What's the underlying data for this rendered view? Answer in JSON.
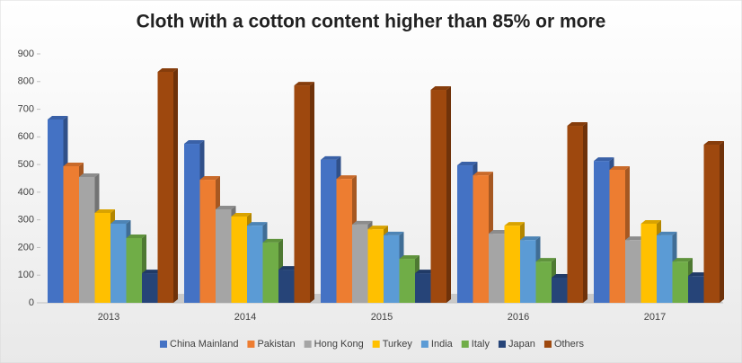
{
  "chart_data": {
    "type": "bar",
    "title": "Cloth with a cotton content higher than 85% or more",
    "categories": [
      "2013",
      "2014",
      "2015",
      "2016",
      "2017"
    ],
    "series": [
      {
        "name": "China Mainland",
        "color": "#4472c4",
        "values": [
          663,
          575,
          517,
          497,
          513
        ]
      },
      {
        "name": "Pakistan",
        "color": "#ed7d31",
        "values": [
          494,
          445,
          448,
          461,
          481
        ]
      },
      {
        "name": "Hong Kong",
        "color": "#a5a5a5",
        "values": [
          455,
          338,
          283,
          250,
          227
        ]
      },
      {
        "name": "Turkey",
        "color": "#ffc000",
        "values": [
          325,
          312,
          266,
          279,
          286
        ]
      },
      {
        "name": "India",
        "color": "#5b9bd5",
        "values": [
          286,
          279,
          244,
          227,
          244
        ]
      },
      {
        "name": "Italy",
        "color": "#70ad47",
        "values": [
          234,
          218,
          159,
          149,
          149
        ]
      },
      {
        "name": "Japan",
        "color": "#264478",
        "values": [
          107,
          120,
          107,
          91,
          97
        ]
      },
      {
        "name": "Others",
        "color": "#9e480e",
        "values": [
          835,
          786,
          770,
          640,
          572
        ]
      }
    ],
    "ylim": [
      0,
      900
    ],
    "yticks": [
      0,
      100,
      200,
      300,
      400,
      500,
      600,
      700,
      800,
      900
    ],
    "grid": false
  }
}
